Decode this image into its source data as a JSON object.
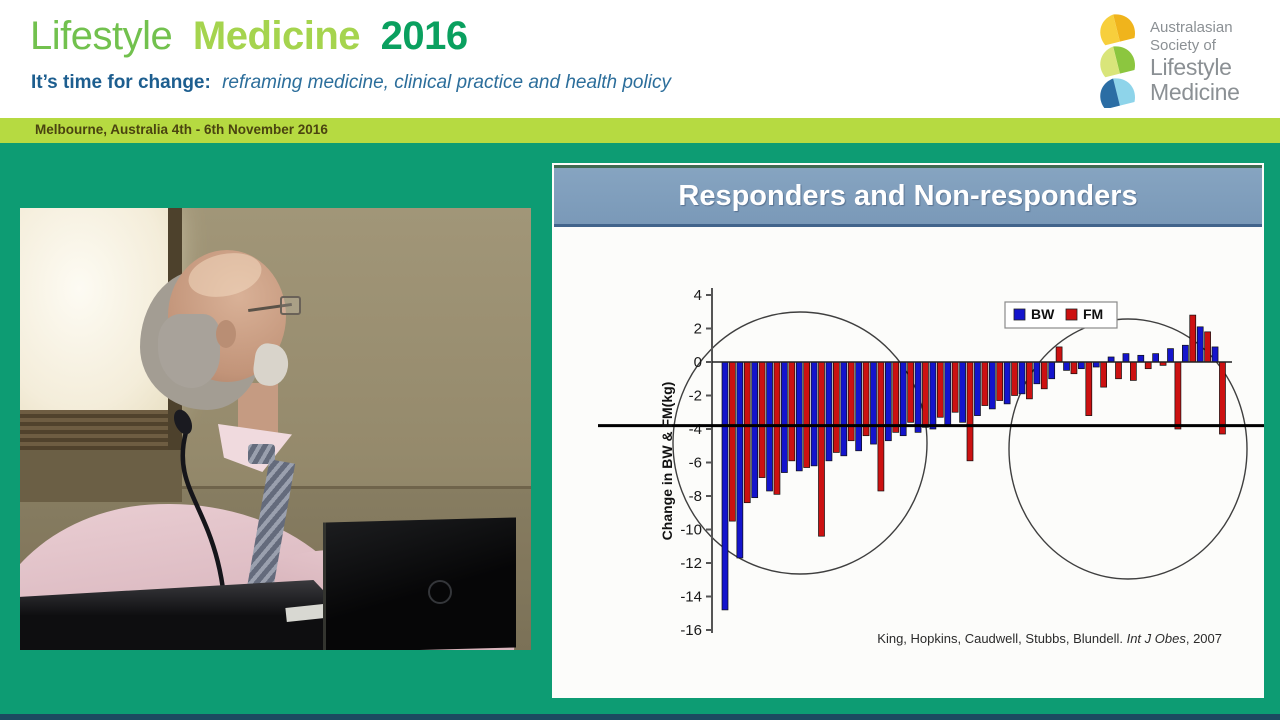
{
  "header": {
    "title": {
      "word1": "Lifestyle",
      "word2": "Medicine",
      "year": "2016"
    },
    "subtitle": {
      "bold": "It’s time for change:",
      "italic": "reframing medicine, clinical practice and health policy"
    },
    "logo": {
      "lines": [
        "Australasian",
        "Society of",
        "Lifestyle",
        "Medicine"
      ],
      "leaf_colors": {
        "yellow_light": "#f7cf3c",
        "yellow_dark": "#f0b41c",
        "green_light": "#d9e57a",
        "green_dark": "#8cc63f",
        "blue_light": "#8ed4ea",
        "blue_dark": "#2b6da4"
      }
    }
  },
  "location_bar": {
    "text": "Melbourne, Australia 4th - 6th November 2016"
  },
  "slide": {
    "title": "Responders and Non-responders",
    "citation": {
      "authors": "King, Hopkins, Caudwell, Stubbs, Blundell. ",
      "journal": "Int J Obes",
      "tail": ", 2007"
    }
  },
  "chart_data": {
    "type": "bar",
    "title": "Responders and Non-responders",
    "xlabel": "",
    "ylabel": "Change in BW & FM(kg)",
    "ylim": [
      -16,
      4
    ],
    "yticks": [
      4,
      2,
      0,
      -2,
      -4,
      -6,
      -8,
      -10,
      -12,
      -14,
      -16
    ],
    "grid": false,
    "reference_line_y": -3.8,
    "legend_position": "top-right",
    "annotations": [
      "ellipse circling left group (responders)",
      "ellipse circling right group (non-responders)",
      "horizontal black reference line at about -3.8 kg spanning the plot"
    ],
    "series": [
      {
        "name": "BW",
        "color": "#1414cc",
        "values": [
          -14.8,
          -11.7,
          -8.1,
          -7.7,
          -6.6,
          -6.5,
          -6.2,
          -5.9,
          -5.6,
          -5.3,
          -4.9,
          -4.7,
          -4.4,
          -4.2,
          -4.0,
          -3.8,
          -3.6,
          -3.2,
          -2.8,
          -2.5,
          -1.9,
          -1.3,
          -1.0,
          -0.5,
          -0.4,
          -0.3,
          0.3,
          0.5,
          0.4,
          0.5,
          0.8,
          1.0,
          2.1,
          0.9
        ]
      },
      {
        "name": "FM",
        "color": "#cc1111",
        "values": [
          -9.5,
          -8.4,
          -6.9,
          -7.9,
          -5.9,
          -6.3,
          -10.4,
          -5.4,
          -4.7,
          -4.4,
          -7.7,
          -4.2,
          -3.6,
          -3.9,
          -3.3,
          -3.0,
          -5.9,
          -2.6,
          -2.3,
          -2.0,
          -2.2,
          -1.6,
          0.9,
          -0.7,
          -3.2,
          -1.5,
          -1.0,
          -1.1,
          -0.4,
          -0.2,
          -4.0,
          2.8,
          1.8,
          -4.3
        ]
      }
    ]
  }
}
